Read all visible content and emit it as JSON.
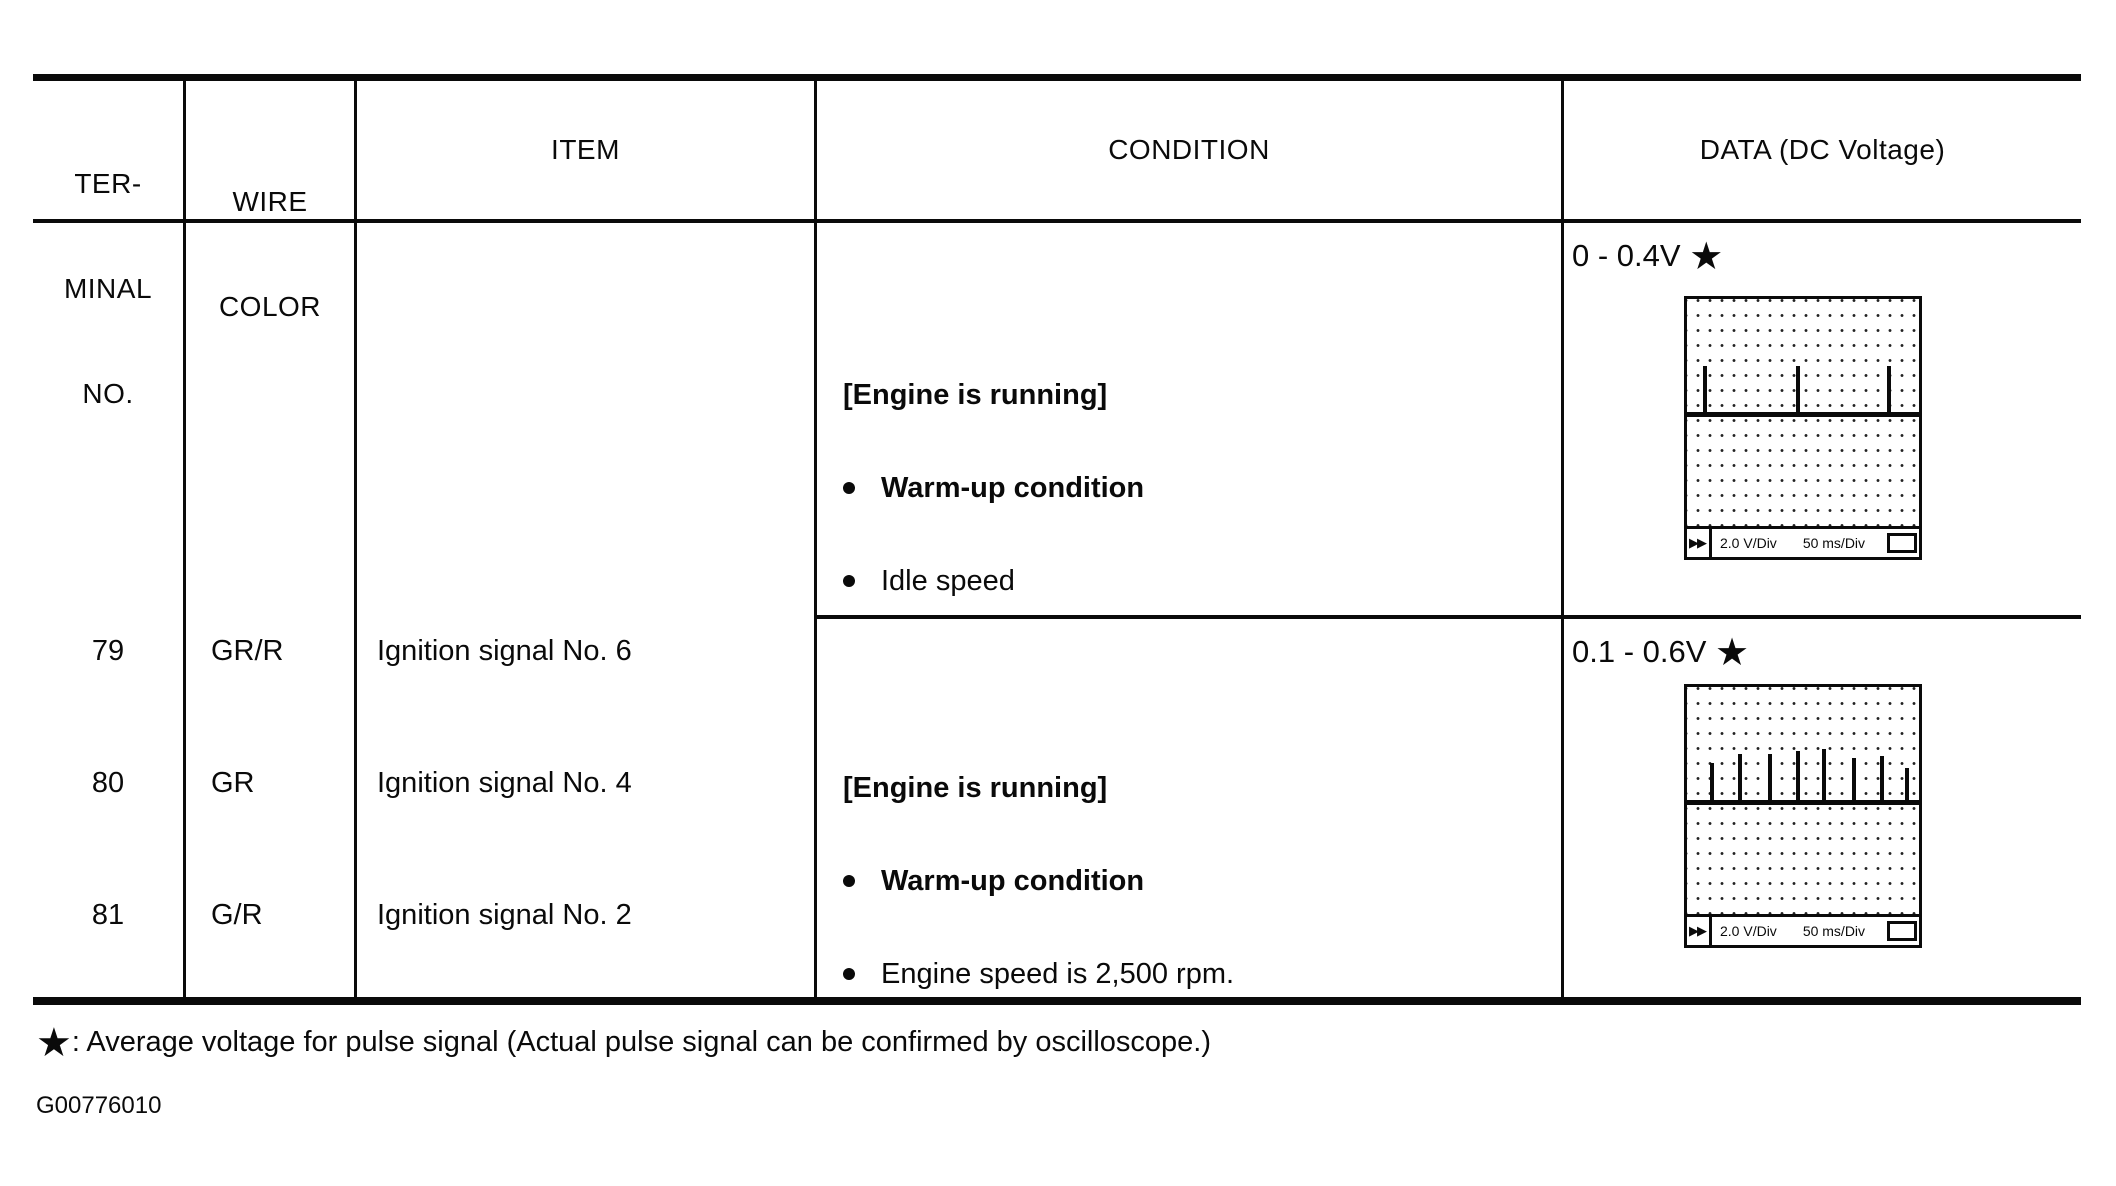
{
  "table": {
    "headers": {
      "terminal_lines": [
        "TER-",
        "MINAL",
        "NO."
      ],
      "wire_lines": [
        "WIRE",
        "COLOR"
      ],
      "item": "ITEM",
      "condition": "CONDITION",
      "data": "DATA (DC Voltage)"
    },
    "row": {
      "terminals": [
        "79",
        "80",
        "81"
      ],
      "wire_colors": [
        "GR/R",
        "GR",
        "G/R"
      ],
      "items": [
        "Ignition signal No. 6",
        "Ignition signal No. 4",
        "Ignition signal No. 2"
      ],
      "conditions": [
        {
          "state": "[Engine is running]",
          "bullets": [
            "Warm-up condition",
            "Idle speed"
          ]
        },
        {
          "state": "[Engine is running]",
          "bullets": [
            "Warm-up condition",
            "Engine speed is 2,500 rpm."
          ]
        }
      ],
      "data_cells": [
        {
          "value": "0 - 0.4V",
          "star": "★",
          "scope": {
            "marker": "▶▶",
            "volts_per_div": "2.0 V/Div",
            "time_per_div": "50 ms/Div",
            "pulses": {
              "positions_pct": [
                7,
                47,
                86
              ],
              "heights_pct": [
                21,
                21,
                21
              ]
            }
          }
        },
        {
          "value": "0.1 - 0.6V",
          "star": "★",
          "scope": {
            "marker": "▶▶",
            "volts_per_div": "2.0 V/Div",
            "time_per_div": "50 ms/Div",
            "pulses": {
              "positions_pct": [
                10,
                22,
                35,
                47,
                58,
                71,
                83,
                94
              ],
              "heights_pct": [
                17,
                21,
                21,
                22,
                23,
                19,
                20,
                15
              ]
            }
          }
        }
      ]
    }
  },
  "footnote": {
    "star": "★",
    "text": ": Average voltage for pulse signal (Actual pulse signal can be confirmed by oscilloscope.)"
  },
  "doc_code": "G00776010"
}
